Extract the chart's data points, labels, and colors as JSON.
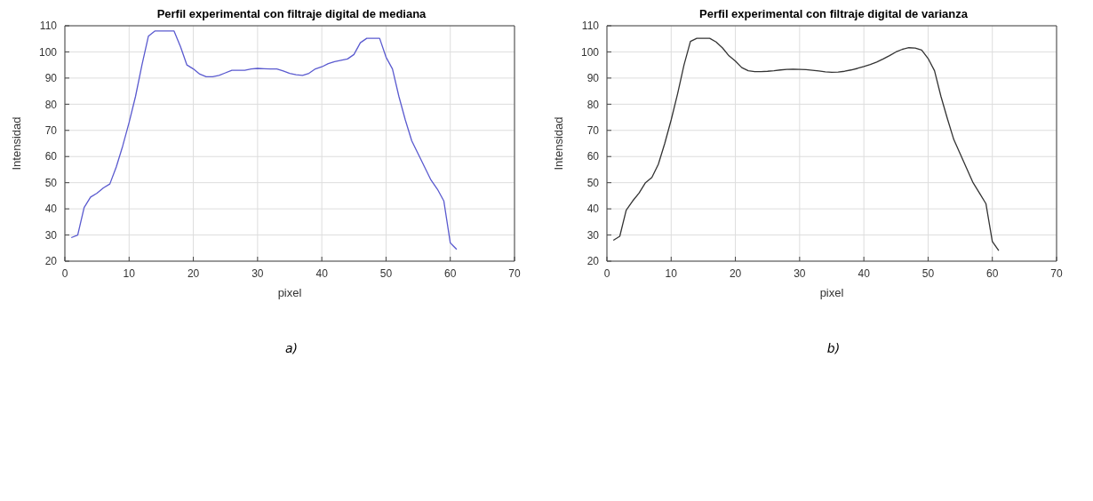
{
  "chart_data": [
    {
      "type": "line",
      "title": "Perfil experimental con filtraje digital de mediana",
      "xlabel": "pixel",
      "ylabel": "Intensidad",
      "annotations": [
        "a)"
      ],
      "x": [
        1,
        2,
        3,
        4,
        5,
        6,
        7,
        8,
        9,
        10,
        11,
        12,
        13,
        14,
        15,
        16,
        17,
        18,
        19,
        20,
        21,
        22,
        23,
        24,
        25,
        26,
        27,
        28,
        29,
        30,
        31,
        32,
        33,
        34,
        35,
        36,
        37,
        38,
        39,
        40,
        41,
        42,
        43,
        44,
        45,
        46,
        47,
        48,
        49,
        50,
        51,
        52,
        53,
        54,
        55,
        56,
        57,
        58,
        59,
        60,
        61
      ],
      "series": [
        {
          "color": "#5a5acf",
          "values": [
            29,
            30,
            40.5,
            44.5,
            46,
            48,
            49.5,
            56,
            64,
            73,
            83,
            95,
            106,
            108,
            108,
            108,
            108,
            102,
            95,
            93.5,
            91.5,
            90.5,
            90.5,
            91,
            92,
            93,
            93,
            93,
            93.5,
            93.7,
            93.6,
            93.5,
            93.5,
            92.7,
            91.8,
            91.3,
            91,
            91.8,
            93.5,
            94.3,
            95.5,
            96.3,
            96.8,
            97.3,
            99,
            103.5,
            105.2,
            105.2,
            105.2,
            98,
            93.5,
            83,
            74,
            66,
            61,
            56,
            51,
            47.5,
            43,
            27,
            24.5
          ]
        }
      ],
      "xlim": [
        0,
        70
      ],
      "xticks": [
        0,
        10,
        20,
        30,
        40,
        50,
        60,
        70
      ],
      "ylim": [
        20,
        110
      ],
      "yticks": [
        20,
        30,
        40,
        50,
        60,
        70,
        80,
        90,
        100,
        110
      ],
      "grid": true,
      "marker": "none",
      "line_style": "solid"
    },
    {
      "type": "line",
      "title": "Perfil experimental con filtraje digital de varianza",
      "xlabel": "pixel",
      "ylabel": "Intensidad",
      "annotations": [
        "b)"
      ],
      "x": [
        1,
        2,
        3,
        4,
        5,
        6,
        7,
        8,
        9,
        10,
        11,
        12,
        13,
        14,
        15,
        16,
        17,
        18,
        19,
        20,
        21,
        22,
        23,
        24,
        25,
        26,
        27,
        28,
        29,
        30,
        31,
        32,
        33,
        34,
        35,
        36,
        37,
        38,
        39,
        40,
        41,
        42,
        43,
        44,
        45,
        46,
        47,
        48,
        49,
        50,
        51,
        52,
        53,
        54,
        55,
        56,
        57,
        58,
        59,
        60,
        61
      ],
      "series": [
        {
          "color": "#333333",
          "values": [
            28,
            29.5,
            39.5,
            43,
            46,
            50,
            52,
            57,
            65,
            74,
            84,
            95,
            104,
            105.2,
            105.2,
            105.2,
            103.8,
            101.5,
            98.5,
            96.5,
            94,
            92.8,
            92.5,
            92.5,
            92.6,
            92.8,
            93.1,
            93.3,
            93.4,
            93.3,
            93.2,
            93,
            92.7,
            92.4,
            92.2,
            92.3,
            92.6,
            93.1,
            93.7,
            94.4,
            95.2,
            96.1,
            97.3,
            98.6,
            100,
            101,
            101.6,
            101.5,
            100.7,
            97.5,
            92.8,
            83,
            74.5,
            66.5,
            61,
            55.5,
            50,
            46,
            42,
            27.5,
            24
          ]
        }
      ],
      "xlim": [
        0,
        70
      ],
      "xticks": [
        0,
        10,
        20,
        30,
        40,
        50,
        60,
        70
      ],
      "ylim": [
        20,
        110
      ],
      "yticks": [
        20,
        30,
        40,
        50,
        60,
        70,
        80,
        90,
        100,
        110
      ],
      "grid": true,
      "marker": "none",
      "line_style": "solid"
    }
  ]
}
